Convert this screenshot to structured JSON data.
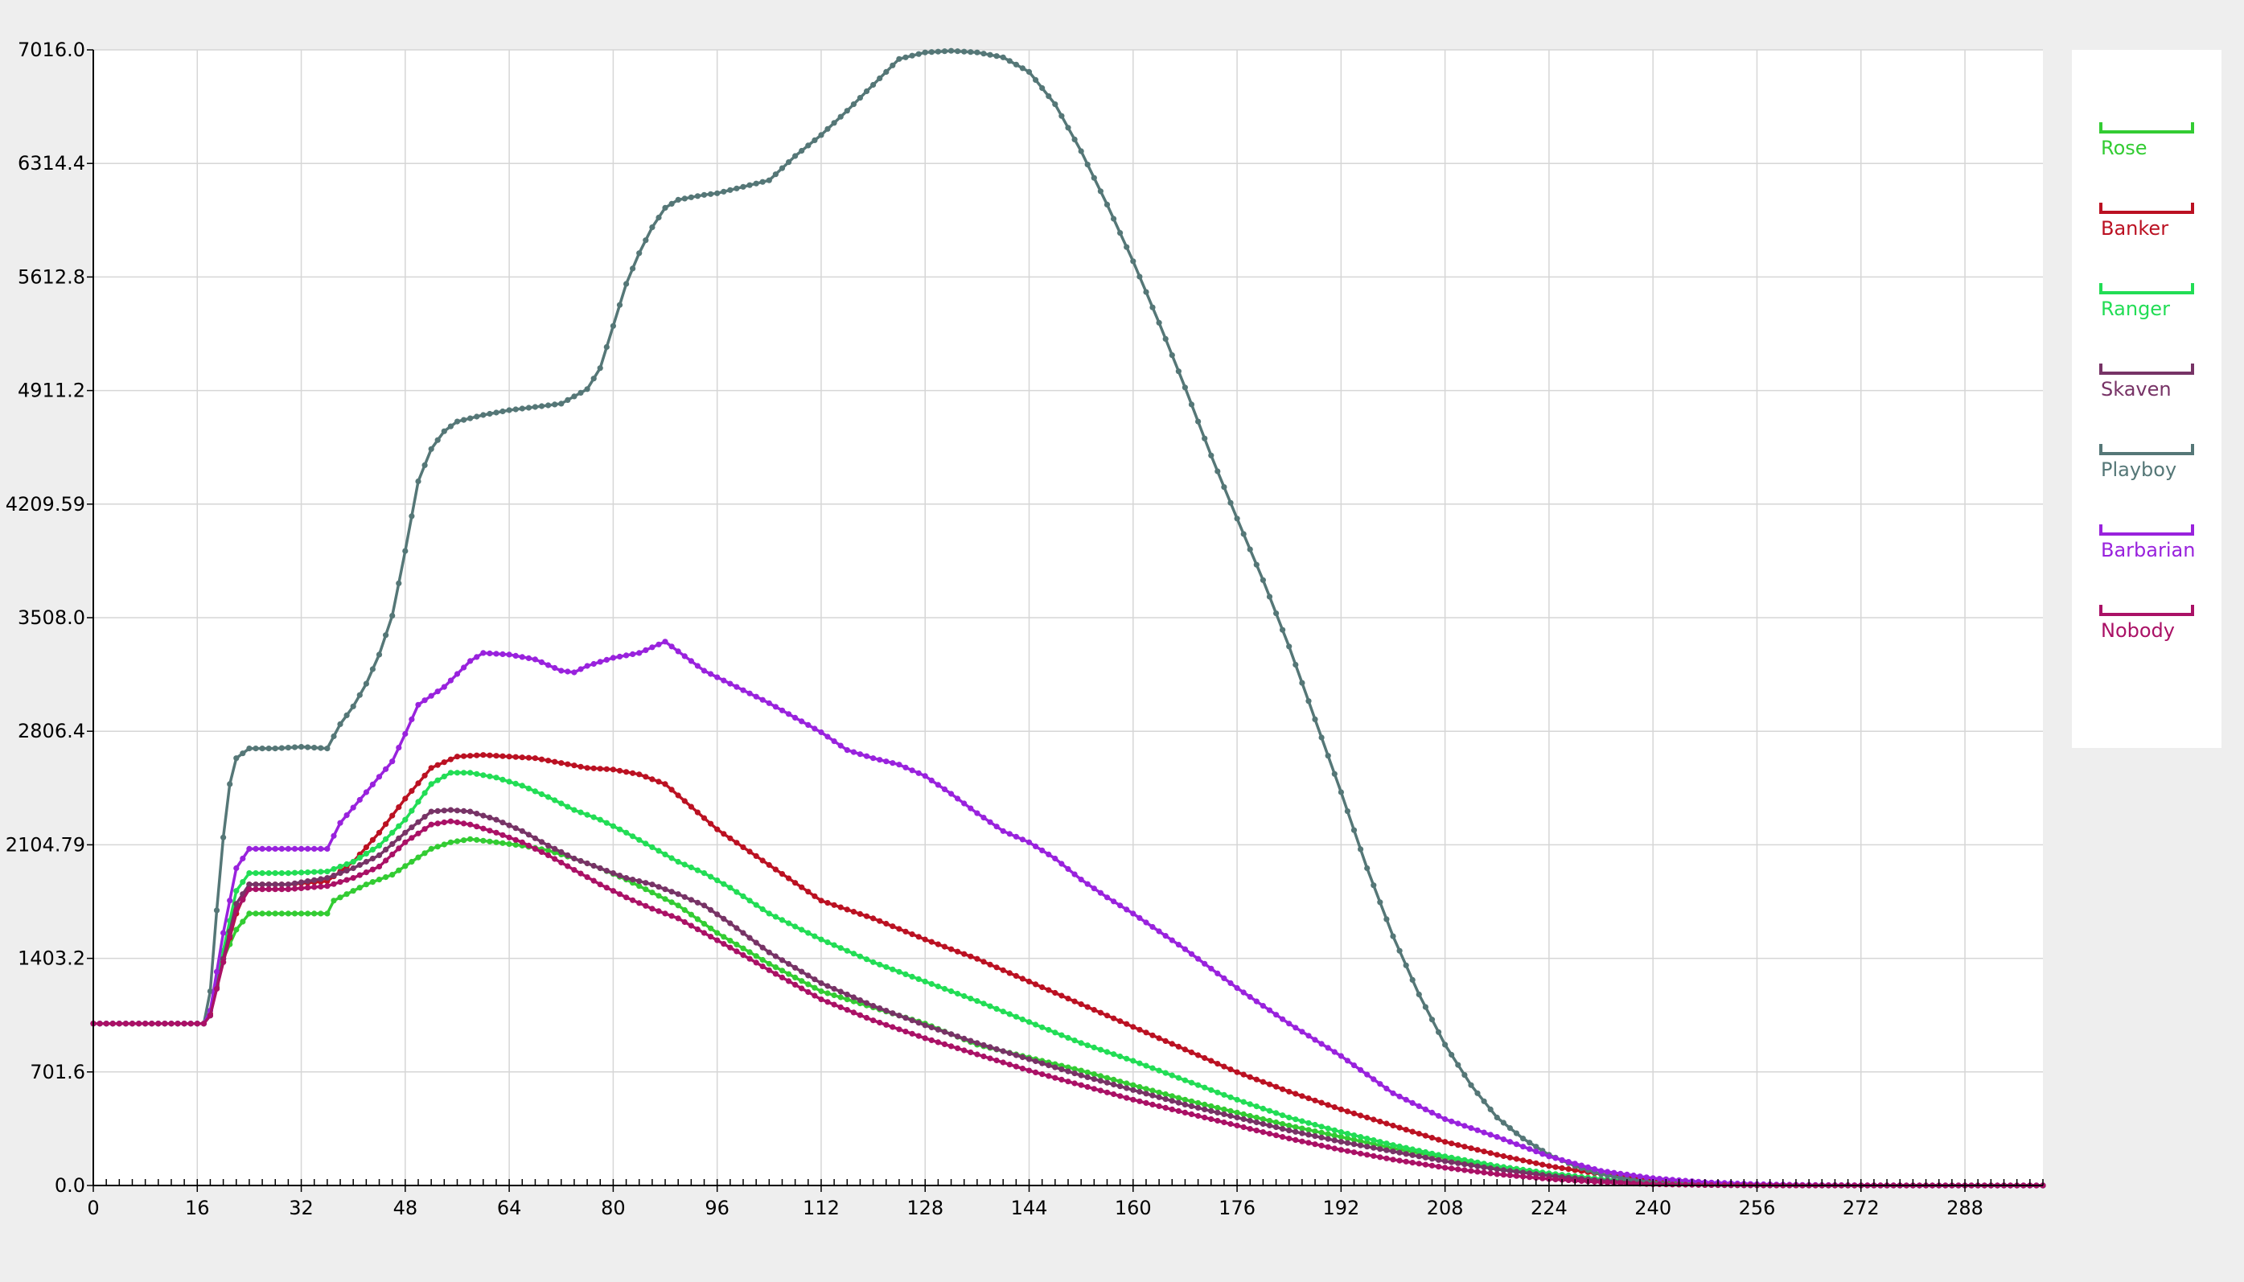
{
  "chart_data": {
    "type": "line",
    "title": "",
    "xlabel": "",
    "ylabel": "",
    "xlim": [
      0,
      300
    ],
    "ylim": [
      0,
      7016
    ],
    "grid": true,
    "legend_position": "right",
    "x_ticks": [
      0,
      16,
      32,
      48,
      64,
      80,
      96,
      112,
      128,
      144,
      160,
      176,
      192,
      208,
      224,
      240,
      256,
      272,
      288
    ],
    "x_tick_labels": [
      "0",
      "16",
      "32",
      "48",
      "64",
      "80",
      "96",
      "112",
      "128",
      "144",
      "160",
      "176",
      "192",
      "208",
      "224",
      "240",
      "256",
      "272",
      "288"
    ],
    "y_ticks": [
      0,
      701.6,
      1403.2,
      2104.79,
      2806.4,
      3508.0,
      4209.59,
      4911.2,
      5612.8,
      6314.4,
      7016.0
    ],
    "y_tick_labels": [
      "0.0",
      "701.6",
      "1403.2",
      "2104.79",
      "2806.4",
      "3508.0",
      "4209.59",
      "4911.2",
      "5612.8",
      "6314.4",
      "7016.0"
    ],
    "series": [
      {
        "name": "Rose",
        "color": "#33cc33",
        "x": [
          0,
          17,
          18,
          20,
          22,
          24,
          30,
          36,
          37,
          42,
          46,
          49,
          52,
          55,
          58,
          62,
          66,
          70,
          74,
          78,
          82,
          86,
          90,
          96,
          104,
          112,
          120,
          128,
          136,
          144,
          152,
          160,
          168,
          176,
          184,
          192,
          200,
          208,
          216,
          224,
          232,
          240,
          248,
          256,
          264,
          272,
          280,
          290,
          300
        ],
        "y": [
          1000,
          1000,
          1080,
          1400,
          1580,
          1680,
          1680,
          1680,
          1760,
          1860,
          1920,
          2000,
          2080,
          2120,
          2140,
          2120,
          2100,
          2070,
          2020,
          1960,
          1890,
          1810,
          1730,
          1560,
          1370,
          1200,
          1100,
          1000,
          870,
          790,
          710,
          620,
          530,
          450,
          370,
          300,
          230,
          170,
          110,
          70,
          35,
          15,
          7,
          3,
          1,
          0,
          0,
          0,
          0
        ]
      },
      {
        "name": "Banker",
        "color": "#bb1122",
        "x": [
          0,
          17,
          18,
          20,
          22,
          24,
          30,
          36,
          40,
          44,
          48,
          52,
          56,
          60,
          64,
          68,
          72,
          76,
          80,
          84,
          88,
          92,
          96,
          104,
          112,
          120,
          128,
          136,
          144,
          152,
          160,
          168,
          176,
          184,
          192,
          200,
          208,
          216,
          224,
          232,
          240,
          248,
          256,
          264,
          272,
          280,
          290,
          300
        ],
        "y": [
          1000,
          1000,
          1060,
          1380,
          1680,
          1860,
          1860,
          1880,
          2000,
          2180,
          2390,
          2580,
          2650,
          2660,
          2650,
          2640,
          2610,
          2580,
          2570,
          2540,
          2480,
          2340,
          2200,
          1980,
          1760,
          1650,
          1520,
          1400,
          1260,
          1120,
          980,
          840,
          700,
          580,
          470,
          370,
          270,
          190,
          120,
          70,
          35,
          15,
          6,
          2,
          1,
          0,
          0,
          0
        ]
      },
      {
        "name": "Ranger",
        "color": "#22dd55",
        "x": [
          0,
          17,
          18,
          20,
          22,
          24,
          30,
          36,
          40,
          44,
          48,
          52,
          55,
          58,
          62,
          66,
          70,
          74,
          78,
          82,
          86,
          90,
          94,
          98,
          104,
          112,
          120,
          128,
          136,
          144,
          152,
          160,
          168,
          176,
          184,
          192,
          200,
          208,
          216,
          224,
          232,
          240,
          248,
          256,
          264,
          272,
          280,
          290,
          300
        ],
        "y": [
          1000,
          1000,
          1050,
          1450,
          1820,
          1930,
          1930,
          1940,
          2000,
          2100,
          2260,
          2480,
          2550,
          2550,
          2520,
          2470,
          2400,
          2320,
          2260,
          2180,
          2090,
          2000,
          1930,
          1840,
          1680,
          1520,
          1380,
          1260,
          1140,
          1010,
          880,
          770,
          650,
          530,
          420,
          330,
          250,
          180,
          120,
          75,
          40,
          18,
          8,
          3,
          1,
          0,
          0,
          0,
          0
        ]
      },
      {
        "name": "Skaven",
        "color": "#773366",
        "x": [
          0,
          17,
          18,
          20,
          22,
          24,
          30,
          36,
          40,
          44,
          48,
          52,
          55,
          58,
          62,
          66,
          70,
          74,
          78,
          82,
          86,
          90,
          94,
          98,
          104,
          112,
          120,
          128,
          136,
          144,
          152,
          160,
          168,
          176,
          184,
          192,
          200,
          208,
          216,
          224,
          232,
          240,
          248,
          256,
          264,
          272,
          280,
          290,
          300
        ],
        "y": [
          1000,
          1000,
          1050,
          1400,
          1740,
          1860,
          1860,
          1900,
          1960,
          2040,
          2180,
          2310,
          2320,
          2310,
          2260,
          2190,
          2100,
          2020,
          1960,
          1900,
          1860,
          1800,
          1730,
          1620,
          1440,
          1250,
          1110,
          990,
          880,
          780,
          680,
          590,
          500,
          420,
          340,
          270,
          210,
          150,
          100,
          60,
          30,
          12,
          5,
          2,
          0,
          0,
          0,
          0,
          0
        ]
      },
      {
        "name": "Playboy",
        "color": "#557777",
        "x": [
          0,
          17,
          18,
          19,
          20,
          21,
          22,
          24,
          28,
          32,
          36,
          38,
          40,
          42,
          44,
          46,
          48,
          50,
          52,
          54,
          56,
          60,
          64,
          68,
          72,
          76,
          78,
          80,
          82,
          84,
          86,
          88,
          90,
          94,
          96,
          100,
          104,
          108,
          112,
          116,
          120,
          124,
          128,
          132,
          136,
          140,
          144,
          148,
          152,
          156,
          160,
          164,
          168,
          172,
          176,
          180,
          184,
          188,
          192,
          196,
          200,
          204,
          208,
          212,
          216,
          220,
          224,
          228,
          232,
          236,
          240,
          244,
          248,
          252,
          256,
          260,
          264,
          268,
          272,
          280,
          290,
          300
        ],
        "y": [
          1000,
          1000,
          1200,
          1700,
          2150,
          2480,
          2640,
          2700,
          2700,
          2710,
          2700,
          2850,
          2960,
          3100,
          3280,
          3520,
          3920,
          4350,
          4550,
          4660,
          4720,
          4760,
          4790,
          4810,
          4830,
          4920,
          5050,
          5310,
          5570,
          5760,
          5920,
          6040,
          6090,
          6120,
          6130,
          6170,
          6210,
          6360,
          6490,
          6640,
          6800,
          6960,
          7000,
          7010,
          7000,
          6970,
          6880,
          6680,
          6390,
          6060,
          5710,
          5330,
          4930,
          4510,
          4120,
          3740,
          3330,
          2880,
          2430,
          1960,
          1540,
          1180,
          870,
          620,
          420,
          290,
          190,
          120,
          70,
          40,
          20,
          8,
          3,
          1,
          0,
          0,
          0,
          0,
          0,
          0,
          0,
          0
        ]
      },
      {
        "name": "Barbarian",
        "color": "#9922dd",
        "x": [
          0,
          17,
          18,
          20,
          22,
          24,
          30,
          36,
          38,
          42,
          46,
          48,
          50,
          54,
          58,
          60,
          64,
          68,
          72,
          74,
          76,
          80,
          84,
          88,
          90,
          94,
          98,
          104,
          112,
          116,
          120,
          124,
          128,
          132,
          136,
          140,
          144,
          148,
          152,
          156,
          160,
          168,
          176,
          184,
          192,
          200,
          208,
          216,
          224,
          232,
          240,
          248,
          256,
          264,
          272,
          280,
          290,
          300
        ],
        "y": [
          1000,
          1000,
          1080,
          1560,
          1960,
          2080,
          2080,
          2080,
          2240,
          2430,
          2620,
          2790,
          2970,
          3080,
          3240,
          3290,
          3280,
          3250,
          3180,
          3170,
          3210,
          3260,
          3290,
          3360,
          3300,
          3180,
          3100,
          2980,
          2800,
          2690,
          2640,
          2600,
          2530,
          2420,
          2300,
          2190,
          2120,
          2020,
          1890,
          1780,
          1680,
          1460,
          1220,
          1000,
          800,
          570,
          410,
          300,
          180,
          90,
          45,
          20,
          8,
          3,
          1,
          0,
          0,
          0
        ]
      },
      {
        "name": "Nobody",
        "color": "#aa1166",
        "x": [
          0,
          17,
          18,
          20,
          22,
          24,
          30,
          36,
          40,
          44,
          48,
          52,
          55,
          58,
          62,
          66,
          70,
          74,
          78,
          82,
          86,
          90,
          94,
          98,
          104,
          112,
          120,
          128,
          136,
          144,
          152,
          160,
          168,
          176,
          184,
          192,
          200,
          208,
          216,
          224,
          232,
          240,
          248,
          256,
          264,
          272,
          280,
          290,
          300
        ],
        "y": [
          1000,
          1000,
          1050,
          1380,
          1700,
          1830,
          1830,
          1850,
          1900,
          1970,
          2120,
          2230,
          2250,
          2230,
          2180,
          2120,
          2040,
          1950,
          1860,
          1780,
          1710,
          1650,
          1560,
          1470,
          1330,
          1150,
          1020,
          910,
          810,
          710,
          620,
          530,
          450,
          370,
          290,
          220,
          160,
          110,
          70,
          40,
          20,
          8,
          3,
          1,
          0,
          0,
          0,
          0,
          0
        ]
      }
    ]
  }
}
